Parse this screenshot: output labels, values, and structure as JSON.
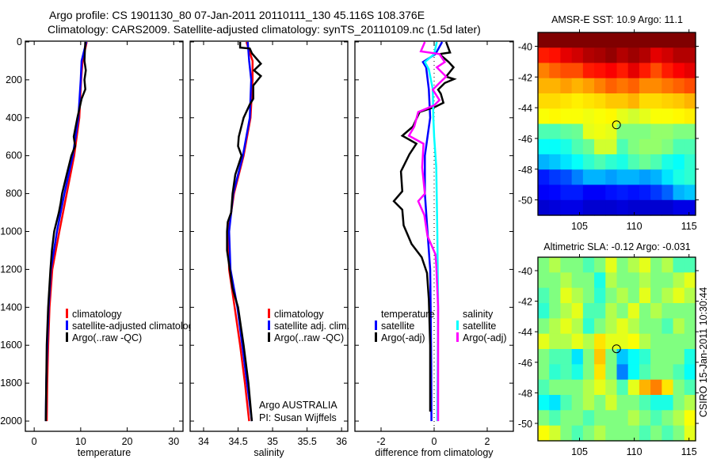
{
  "title_line1": "Argo profile: CS 1901130_80 07-Jan-2011 20110111_130 45.116S 108.376E",
  "title_line2": "Climatology: CARS2009. Satellite-adjusted climatology: synTS_20110109.nc (1.5d later)",
  "side_stamp": "CSIRO 15-Jan-2011 10:30:44",
  "credit": {
    "line1": "Argo AUSTRALIA",
    "line2": "PI: Susan Wijffels"
  },
  "colors": {
    "climatology": "#ff0000",
    "satellite": "#0000ff",
    "argo": "#000000",
    "cyan": "#00ffff",
    "magenta": "#ff00ff"
  },
  "legends": {
    "temperature": [
      "climatology",
      "satellite-adjusted climatology",
      "Argo(..raw -QC)"
    ],
    "salinity": [
      "climatology",
      "satellite adj. clim.",
      "Argo(..raw -QC)"
    ],
    "diff": {
      "temp_header": "temperature",
      "sal_header": "salinity",
      "temp_items": [
        "satellite",
        "Argo(-adj)"
      ],
      "sal_items": [
        "satellite",
        "Argo(-adj)"
      ]
    }
  },
  "chart_data": [
    {
      "type": "line",
      "id": "temperature",
      "xlabel": "temperature",
      "ylabel": "",
      "xlim": [
        -1.9,
        32
      ],
      "ylim": [
        2054,
        -4
      ],
      "xticks": [
        0,
        10,
        20,
        30
      ],
      "yticks": [
        0,
        200,
        400,
        600,
        800,
        1000,
        1200,
        1400,
        1600,
        1800,
        2000
      ],
      "series": [
        {
          "name": "climatology",
          "color": "#ff0000",
          "depth": [
            0,
            100,
            200,
            400,
            600,
            800,
            1000,
            1200,
            1400,
            1600,
            1800,
            2000
          ],
          "values": [
            11.3,
            10.4,
            10.1,
            9.7,
            8.6,
            7.0,
            5.4,
            3.9,
            3.3,
            3.0,
            2.8,
            2.7
          ]
        },
        {
          "name": "satellite-adjusted climatology",
          "color": "#0000ff",
          "depth": [
            0,
            100,
            200,
            400,
            600,
            800,
            1000,
            1200,
            1400,
            1600,
            1800,
            2000
          ],
          "values": [
            11.2,
            10.2,
            10.0,
            9.5,
            8.3,
            6.5,
            4.9,
            3.6,
            3.1,
            2.8,
            2.6,
            2.5
          ]
        },
        {
          "name": "Argo(..raw -QC)",
          "color": "#000000",
          "depth": [
            0,
            50,
            100,
            150,
            200,
            250,
            300,
            400,
            500,
            550,
            600,
            700,
            800,
            850,
            900,
            1000,
            1100,
            1200,
            1400,
            1600,
            1800,
            2000
          ],
          "values": [
            11.0,
            10.9,
            10.8,
            11.1,
            10.8,
            11.0,
            10.2,
            9.3,
            8.5,
            8.8,
            8.0,
            7.0,
            6.0,
            5.7,
            5.3,
            4.3,
            3.8,
            3.5,
            3.0,
            2.7,
            2.6,
            2.5
          ]
        }
      ]
    },
    {
      "type": "line",
      "id": "salinity",
      "xlabel": "salinity",
      "xlim": [
        33.805,
        36.09
      ],
      "ylim": [
        2054,
        -4
      ],
      "xticks": [
        "34",
        "34.5",
        "35",
        "35.5",
        "36"
      ],
      "series": [
        {
          "name": "climatology",
          "color": "#ff0000",
          "depth": [
            0,
            100,
            200,
            400,
            600,
            800,
            1000,
            1200,
            1400,
            1600,
            1800,
            2000
          ],
          "values": [
            34.62,
            34.71,
            34.71,
            34.68,
            34.58,
            34.44,
            34.36,
            34.37,
            34.45,
            34.53,
            34.6,
            34.66
          ]
        },
        {
          "name": "satellite adj. clim.",
          "color": "#0000ff",
          "depth": [
            0,
            100,
            200,
            400,
            600,
            800,
            1000,
            1200,
            1400,
            1600,
            1800,
            2000
          ],
          "values": [
            34.64,
            34.66,
            34.69,
            34.67,
            34.57,
            34.43,
            34.37,
            34.39,
            34.49,
            34.56,
            34.63,
            34.7
          ]
        },
        {
          "name": "Argo(..raw -QC)",
          "color": "#000000",
          "depth": [
            0,
            30,
            35,
            60,
            115,
            150,
            180,
            230,
            300,
            330,
            400,
            500,
            550,
            600,
            700,
            800,
            900,
            950,
            1000,
            1100,
            1200,
            1300,
            1400,
            1600,
            1800,
            2000
          ],
          "values": [
            34.53,
            34.53,
            34.67,
            34.7,
            34.83,
            34.73,
            34.83,
            34.72,
            34.72,
            34.67,
            34.58,
            34.51,
            34.5,
            34.55,
            34.46,
            34.42,
            34.4,
            34.35,
            34.34,
            34.34,
            34.38,
            34.42,
            34.5,
            34.58,
            34.65,
            34.7
          ]
        }
      ]
    },
    {
      "type": "line",
      "id": "difference",
      "xlabel": "difference from climatology",
      "xlim": [
        -2.985,
        2.985
      ],
      "ylim": [
        2054,
        -4
      ],
      "xticks": [
        -2,
        0,
        2
      ],
      "series": [
        {
          "name": "temperature satellite",
          "color": "#0000ff",
          "depth": [
            0,
            64,
            106,
            134,
            250,
            400,
            600,
            800,
            1000,
            1200,
            1400,
            1700,
            2000
          ],
          "values": [
            0.3,
            0.05,
            -0.42,
            -0.3,
            -0.2,
            -0.15,
            -0.35,
            -0.35,
            -0.25,
            -0.15,
            -0.13,
            -0.11,
            -0.1
          ]
        },
        {
          "name": "temperature Argo(-adj)",
          "color": "#000000",
          "depth": [
            0,
            56,
            64,
            106,
            134,
            183,
            196,
            217,
            252,
            273,
            321,
            342,
            370,
            447,
            495,
            537,
            593,
            683,
            788,
            840,
            885,
            968,
            1066,
            1136,
            1219,
            1358,
            1600,
            1950
          ],
          "values": [
            0.45,
            0.6,
            0.2,
            0.55,
            0.73,
            0.45,
            0.75,
            0.4,
            0.15,
            0.25,
            0.35,
            0.05,
            -0.55,
            -0.8,
            -1.2,
            -0.67,
            -0.93,
            -1.25,
            -1.2,
            -1.52,
            -1.2,
            -1.15,
            -0.85,
            -0.47,
            -0.27,
            -0.2,
            -0.15,
            -0.15
          ]
        },
        {
          "name": "salinity satellite",
          "color": "#00ffff",
          "depth": [
            0,
            64,
            106,
            144,
            250,
            400,
            500,
            662,
            1000,
            1400,
            2000
          ],
          "values": [
            0.1,
            0.0,
            -0.35,
            -0.2,
            -0.05,
            -0.03,
            0.0,
            0.08,
            0.12,
            0.15,
            0.12
          ]
        },
        {
          "name": "salinity Argo(-adj)",
          "color": "#ff00ff",
          "depth": [
            0,
            50,
            64,
            106,
            134,
            183,
            217,
            252,
            307,
            335,
            370,
            447,
            495,
            537,
            662,
            801,
            840,
            913,
            1024,
            1121,
            1177,
            1400,
            1700,
            2000
          ],
          "values": [
            -0.35,
            -0.5,
            0.2,
            0.4,
            0.1,
            0.45,
            0.2,
            -0.05,
            0.2,
            0.0,
            -0.6,
            -0.75,
            -0.95,
            -0.4,
            -0.45,
            -0.35,
            -0.6,
            -0.37,
            -0.25,
            0.05,
            0.08,
            0.15,
            0.15,
            0.15
          ]
        }
      ]
    },
    {
      "type": "heatmap",
      "id": "sst_map",
      "title": "AMSR-E SST: 10.9 Argo: 11.1",
      "colormap": "jet",
      "lon_range": [
        101.2,
        115.6
      ],
      "lat_range": [
        -39.1,
        -51.0
      ],
      "xticks": [
        105,
        110,
        115
      ],
      "yticks": [
        -40,
        -42,
        -44,
        -46,
        -48,
        -50
      ],
      "marker": {
        "lon": 108.376,
        "lat": -45.116
      },
      "grid_colormap_fraction": [
        [
          1,
          1,
          1,
          1,
          1,
          1,
          1,
          1,
          1,
          1,
          1,
          1,
          1,
          1
        ],
        [
          0.85,
          0.86,
          0.9,
          0.92,
          0.95,
          0.96,
          0.98,
          0.95,
          0.97,
          0.95,
          0.9,
          0.92,
          0.95,
          0.95
        ],
        [
          0.75,
          0.78,
          0.8,
          0.8,
          0.85,
          0.86,
          0.88,
          0.85,
          0.9,
          0.85,
          0.8,
          0.85,
          0.88,
          0.9
        ],
        [
          0.7,
          0.7,
          0.72,
          0.7,
          0.72,
          0.75,
          0.78,
          0.76,
          0.78,
          0.74,
          0.74,
          0.76,
          0.78,
          0.8
        ],
        [
          0.66,
          0.66,
          0.65,
          0.64,
          0.65,
          0.66,
          0.68,
          0.68,
          0.7,
          0.66,
          0.66,
          0.67,
          0.68,
          0.7
        ],
        [
          0.62,
          0.63,
          0.62,
          0.62,
          0.61,
          0.62,
          0.63,
          0.6,
          0.58,
          0.6,
          0.62,
          0.62,
          0.63,
          0.64
        ],
        [
          0.45,
          0.45,
          0.47,
          0.48,
          0.6,
          0.61,
          0.6,
          0.5,
          0.5,
          0.5,
          0.52,
          0.52,
          0.5,
          0.5
        ],
        [
          0.38,
          0.38,
          0.4,
          0.45,
          0.48,
          0.58,
          0.58,
          0.45,
          0.5,
          0.52,
          0.52,
          0.5,
          0.45,
          0.45
        ],
        [
          0.3,
          0.32,
          0.35,
          0.38,
          0.42,
          0.45,
          0.42,
          0.4,
          0.45,
          0.48,
          0.45,
          0.4,
          0.38,
          0.42
        ],
        [
          0.15,
          0.18,
          0.2,
          0.25,
          0.3,
          0.3,
          0.28,
          0.3,
          0.3,
          0.28,
          0.3,
          0.35,
          0.4,
          0.42
        ],
        [
          0.12,
          0.13,
          0.15,
          0.15,
          0.12,
          0.12,
          0.14,
          0.15,
          0.14,
          0.15,
          0.18,
          0.22,
          0.3,
          0.32
        ],
        [
          0.08,
          0.09,
          0.1,
          0.1,
          0.08,
          0.08,
          0.08,
          0.09,
          0.08,
          0.08,
          0.08,
          0.08,
          0.1,
          0.1
        ]
      ]
    },
    {
      "type": "heatmap",
      "id": "sla_map",
      "title": "Altimetric SLA: -0.12 Argo: -0.031",
      "colormap": "jet",
      "lon_range": [
        101.2,
        115.6
      ],
      "lat_range": [
        -39.12,
        -51.14
      ],
      "xticks": [
        105,
        110,
        115
      ],
      "yticks": [
        -40,
        -42,
        -44,
        -46,
        -48,
        -50
      ],
      "marker": {
        "lon": 108.376,
        "lat": -45.116
      },
      "grid_colormap_fraction": [
        [
          0.5,
          0.55,
          0.5,
          0.5,
          0.45,
          0.5,
          0.6,
          0.5,
          0.55,
          0.6,
          0.5,
          0.55,
          0.45,
          0.45
        ],
        [
          0.5,
          0.5,
          0.55,
          0.5,
          0.5,
          0.4,
          0.55,
          0.5,
          0.5,
          0.55,
          0.5,
          0.5,
          0.55,
          0.6
        ],
        [
          0.45,
          0.5,
          0.6,
          0.55,
          0.5,
          0.42,
          0.5,
          0.55,
          0.5,
          0.6,
          0.5,
          0.55,
          0.6,
          0.55
        ],
        [
          0.42,
          0.5,
          0.55,
          0.6,
          0.45,
          0.45,
          0.55,
          0.5,
          0.6,
          0.5,
          0.55,
          0.5,
          0.5,
          0.5
        ],
        [
          0.5,
          0.55,
          0.6,
          0.55,
          0.42,
          0.5,
          0.55,
          0.6,
          0.55,
          0.5,
          0.5,
          0.45,
          0.55,
          0.5
        ],
        [
          0.6,
          0.55,
          0.55,
          0.6,
          0.55,
          0.65,
          0.6,
          0.6,
          0.62,
          0.55,
          0.5,
          0.5,
          0.5,
          0.5
        ],
        [
          0.5,
          0.45,
          0.45,
          0.35,
          0.5,
          0.68,
          0.5,
          0.32,
          0.38,
          0.42,
          0.5,
          0.5,
          0.5,
          0.4
        ],
        [
          0.5,
          0.42,
          0.45,
          0.4,
          0.5,
          0.65,
          0.5,
          0.25,
          0.38,
          0.45,
          0.5,
          0.5,
          0.45,
          0.38
        ],
        [
          0.45,
          0.5,
          0.5,
          0.5,
          0.55,
          0.6,
          0.55,
          0.45,
          0.6,
          0.7,
          0.75,
          0.65,
          0.5,
          0.45
        ],
        [
          0.38,
          0.35,
          0.45,
          0.5,
          0.55,
          0.5,
          0.58,
          0.5,
          0.5,
          0.45,
          0.4,
          0.4,
          0.5,
          0.55
        ],
        [
          0.5,
          0.45,
          0.5,
          0.5,
          0.45,
          0.5,
          0.5,
          0.5,
          0.55,
          0.5,
          0.45,
          0.5,
          0.55,
          0.62
        ],
        [
          0.62,
          0.58,
          0.5,
          0.45,
          0.5,
          0.55,
          0.5,
          0.5,
          0.5,
          0.45,
          0.5,
          0.45,
          0.5,
          0.6
        ]
      ]
    }
  ]
}
